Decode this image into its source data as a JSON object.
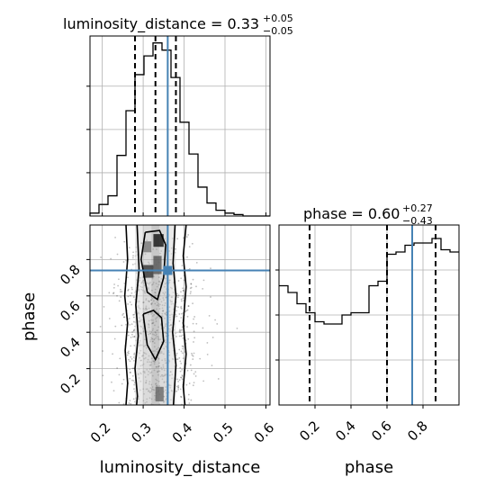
{
  "chart_data": [
    {
      "type": "histogram",
      "panel": "luminosity_distance marginal",
      "title": {
        "prefix": "luminosity_distance = 0.33",
        "plus": "+0.05",
        "minus": "−0.05"
      },
      "xlim": [
        0.17,
        0.61
      ],
      "bins": [
        0.17,
        0.192,
        0.214,
        0.236,
        0.258,
        0.28,
        0.302,
        0.324,
        0.346,
        0.368,
        0.39,
        0.412,
        0.434,
        0.456,
        0.478,
        0.5,
        0.522,
        0.544,
        0.566,
        0.588,
        0.61
      ],
      "counts": [
        2,
        8,
        14,
        42,
        73,
        98,
        111,
        120,
        115,
        96,
        65,
        43,
        20,
        9,
        4,
        2,
        1,
        0,
        0,
        0
      ],
      "quantiles": [
        0.28,
        0.33,
        0.38
      ],
      "truth": 0.36,
      "color_truth": "#4682b4"
    },
    {
      "type": "histogram",
      "panel": "phase marginal",
      "title": {
        "prefix": "phase = 0.60",
        "plus": "+0.27",
        "minus": "−0.43"
      },
      "xlim": [
        0.0,
        1.0
      ],
      "xticks": [
        "0.2",
        "0.4",
        "0.6",
        "0.8"
      ],
      "bins": [
        0.0,
        0.05,
        0.1,
        0.15,
        0.2,
        0.25,
        0.3,
        0.35,
        0.4,
        0.45,
        0.5,
        0.55,
        0.6,
        0.65,
        0.7,
        0.75,
        0.8,
        0.85,
        0.9,
        0.95,
        1.0
      ],
      "counts": [
        53,
        50,
        45,
        41,
        37,
        36,
        36,
        40,
        41,
        41,
        53,
        55,
        67,
        68,
        71,
        72,
        72,
        74,
        69,
        68
      ],
      "quantiles": [
        0.17,
        0.6,
        0.87
      ],
      "truth": 0.74,
      "color_truth": "#4682b4"
    },
    {
      "type": "contour",
      "panel": "2D posterior",
      "xlabel": "luminosity_distance",
      "ylabel": "phase",
      "xlim": [
        0.17,
        0.61
      ],
      "ylim": [
        0.0,
        0.99
      ],
      "xticks": [
        "0.2",
        "0.3",
        "0.4",
        "0.5",
        "0.6"
      ],
      "yticks": [
        "0.2",
        "0.4",
        "0.6",
        "0.8"
      ],
      "truth": {
        "x": 0.36,
        "y": 0.74
      },
      "color_truth": "#4682b4"
    }
  ]
}
